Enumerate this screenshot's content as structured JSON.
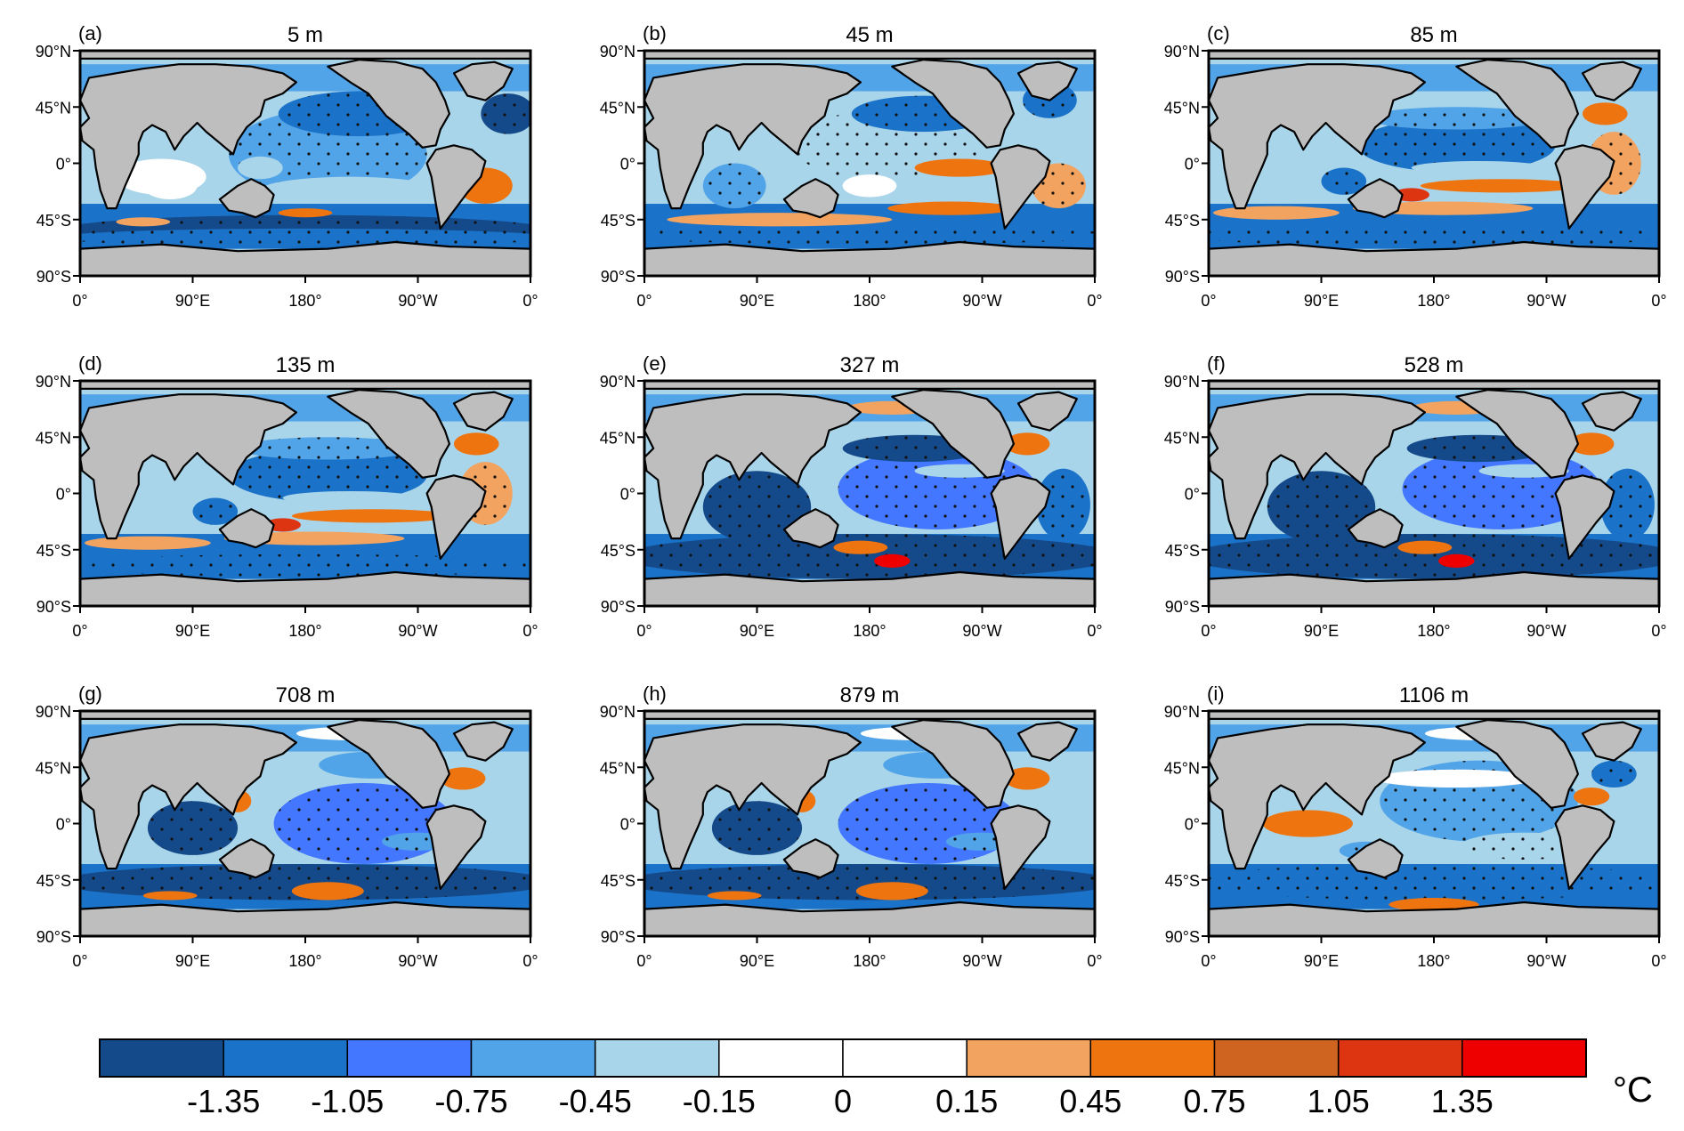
{
  "panels": [
    {
      "letter": "(a)",
      "depth": "5 m",
      "pattern": "cool_north"
    },
    {
      "letter": "(b)",
      "depth": "45 m",
      "pattern": "mixed_warm_south"
    },
    {
      "letter": "(c)",
      "depth": "85 m",
      "pattern": "mixed_bands"
    },
    {
      "letter": "(d)",
      "depth": "135 m",
      "pattern": "mixed_bands"
    },
    {
      "letter": "(e)",
      "depth": "327 m",
      "pattern": "cool_south"
    },
    {
      "letter": "(f)",
      "depth": "528 m",
      "pattern": "cool_south"
    },
    {
      "letter": "(g)",
      "depth": "708 m",
      "pattern": "cool_tropics"
    },
    {
      "letter": "(h)",
      "depth": "879 m",
      "pattern": "cool_tropics"
    },
    {
      "letter": "(i)",
      "depth": "1106 m",
      "pattern": "warm_indian"
    }
  ],
  "axes": {
    "lat_ticks": [
      "90°N",
      "45°N",
      "0°",
      "45°S",
      "90°S"
    ],
    "lon_ticks": [
      "0°",
      "90°E",
      "180°",
      "90°W",
      "0°"
    ]
  },
  "colorbar": {
    "unit": "°C",
    "colors": [
      "#154a8a",
      "#1b73c9",
      "#4477ff",
      "#52a4e8",
      "#a9d5ea",
      "#ffffff",
      "#ffffff",
      "#f3a360",
      "#ee7410",
      "#cf6420",
      "#dd3412",
      "#ee0000"
    ],
    "labels": [
      "-1.35",
      "-1.05",
      "-0.75",
      "-0.45",
      "-0.15",
      "0",
      "0.15",
      "0.45",
      "0.75",
      "1.05",
      "1.35"
    ]
  },
  "map_colors": {
    "land": "#bebebe",
    "coast": "#000000",
    "stipple": "#111111"
  }
}
